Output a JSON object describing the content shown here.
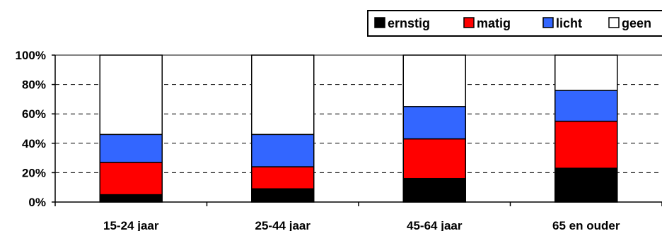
{
  "chart_data": {
    "type": "bar",
    "stacked": true,
    "categories": [
      "15-24 jaar",
      "25-44 jaar",
      "45-64 jaar",
      "65 en ouder"
    ],
    "series": [
      {
        "name": "ernstig",
        "color": "#000000",
        "values": [
          5,
          9,
          16,
          23
        ]
      },
      {
        "name": "matig",
        "color": "#ff0000",
        "values": [
          22,
          15,
          27,
          32
        ]
      },
      {
        "name": "licht",
        "color": "#3366ff",
        "values": [
          19,
          22,
          22,
          21
        ]
      },
      {
        "name": "geen",
        "color": "#ffffff",
        "values": [
          54,
          54,
          35,
          24
        ]
      }
    ],
    "yticks": [
      "0%",
      "20%",
      "40%",
      "60%",
      "80%",
      "100%"
    ],
    "ylim": [
      0,
      100
    ],
    "grid": true,
    "legend_position": "top-right",
    "title": "",
    "xlabel": "",
    "ylabel": ""
  }
}
